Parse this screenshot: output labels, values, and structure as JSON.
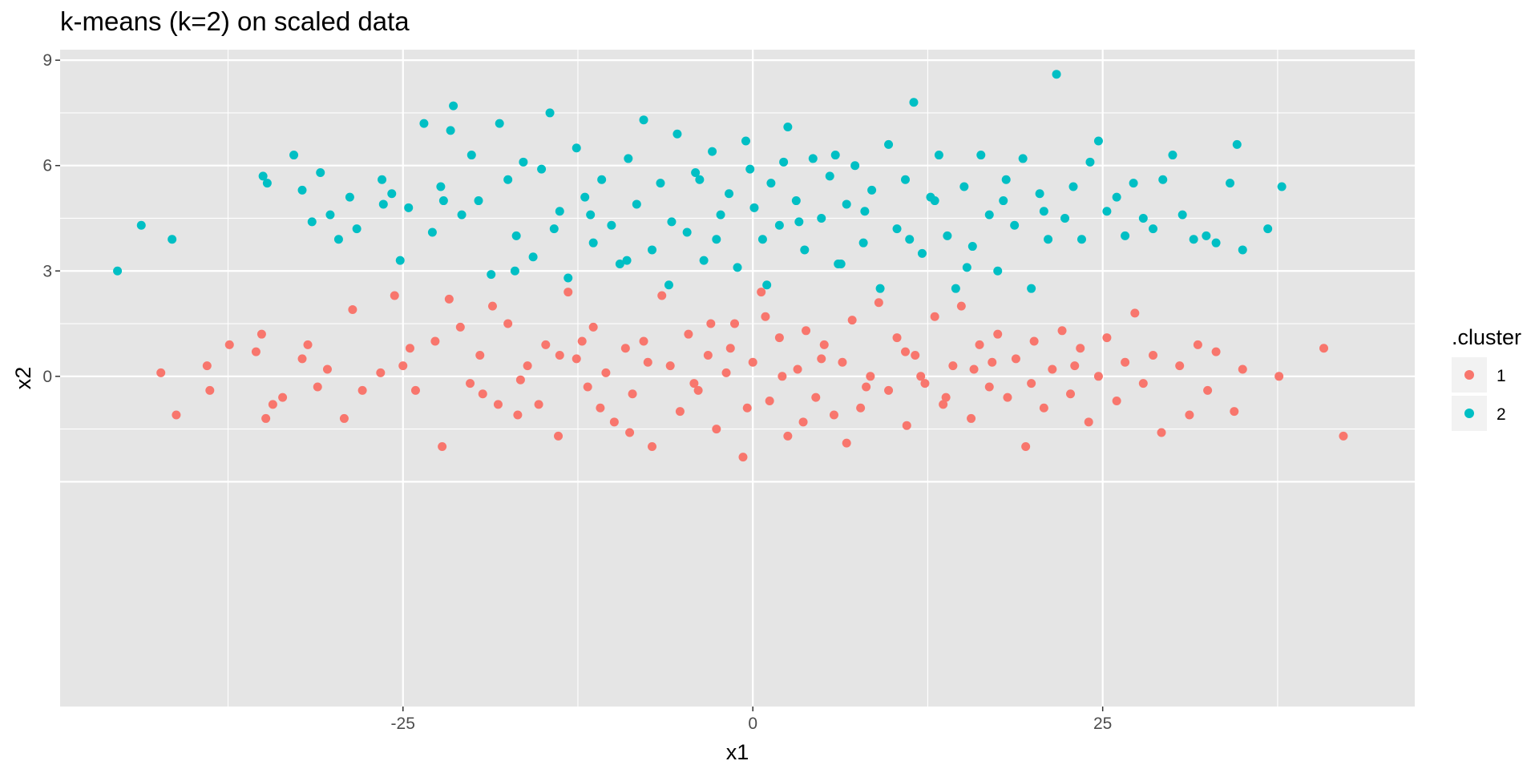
{
  "chart_data": {
    "type": "scatter",
    "title": "k-means (k=2) on scaled data",
    "xlabel": "x1",
    "ylabel": "x2",
    "xlim": [
      -49.5,
      47.3
    ],
    "ylim": [
      -9.4,
      9.3
    ],
    "x_ticks": [
      -25,
      0,
      25
    ],
    "y_ticks": [
      0,
      3,
      6,
      9
    ],
    "grid": true,
    "background": "#e5e5e5",
    "legend": {
      "title": ".cluster",
      "position": "right",
      "entries": [
        {
          "label": "1",
          "color": "#f8766d"
        },
        {
          "label": "2",
          "color": "#00bfc4"
        }
      ]
    },
    "series": [
      {
        "name": "1",
        "color": "#f8766d",
        "points": [
          [
            -42.3,
            0.1
          ],
          [
            -41.2,
            -1.1
          ],
          [
            -39.0,
            0.3
          ],
          [
            -38.8,
            -0.4
          ],
          [
            -37.4,
            0.9
          ],
          [
            -35.5,
            0.7
          ],
          [
            -35.1,
            1.2
          ],
          [
            -34.8,
            -1.2
          ],
          [
            -34.3,
            -0.8
          ],
          [
            -33.6,
            -0.6
          ],
          [
            -32.2,
            0.5
          ],
          [
            -31.8,
            0.9
          ],
          [
            -31.1,
            -0.3
          ],
          [
            -30.4,
            0.2
          ],
          [
            -29.2,
            -1.2
          ],
          [
            -28.6,
            1.9
          ],
          [
            -27.9,
            -0.4
          ],
          [
            -26.6,
            0.1
          ],
          [
            -25.6,
            2.3
          ],
          [
            -25.0,
            0.3
          ],
          [
            -24.5,
            0.8
          ],
          [
            -24.1,
            -0.4
          ],
          [
            -22.7,
            1.0
          ],
          [
            -22.2,
            -2.0
          ],
          [
            -21.7,
            2.2
          ],
          [
            -20.9,
            1.4
          ],
          [
            -20.2,
            -0.2
          ],
          [
            -19.5,
            0.6
          ],
          [
            -18.6,
            2.0
          ],
          [
            -18.2,
            -0.8
          ],
          [
            -17.5,
            1.5
          ],
          [
            -16.8,
            -1.1
          ],
          [
            -16.1,
            0.3
          ],
          [
            -15.3,
            -0.8
          ],
          [
            -14.8,
            0.9
          ],
          [
            -13.9,
            -1.7
          ],
          [
            -13.2,
            2.4
          ],
          [
            -12.6,
            0.5
          ],
          [
            -11.8,
            -0.3
          ],
          [
            -11.4,
            1.4
          ],
          [
            -10.5,
            0.1
          ],
          [
            -9.9,
            -1.3
          ],
          [
            -9.1,
            0.8
          ],
          [
            -8.6,
            -0.5
          ],
          [
            -7.8,
            1.0
          ],
          [
            -7.2,
            -2.0
          ],
          [
            -6.5,
            2.3
          ],
          [
            -5.9,
            0.3
          ],
          [
            -5.2,
            -1.0
          ],
          [
            -4.6,
            1.2
          ],
          [
            -3.9,
            -0.4
          ],
          [
            -3.2,
            0.6
          ],
          [
            -2.6,
            -1.5
          ],
          [
            -1.9,
            0.1
          ],
          [
            -1.3,
            1.5
          ],
          [
            -0.7,
            -2.3
          ],
          [
            0.0,
            0.4
          ],
          [
            0.6,
            2.4
          ],
          [
            1.2,
            -0.7
          ],
          [
            1.9,
            1.1
          ],
          [
            2.5,
            -1.7
          ],
          [
            3.2,
            0.2
          ],
          [
            3.8,
            1.3
          ],
          [
            4.5,
            -0.6
          ],
          [
            5.1,
            0.9
          ],
          [
            5.8,
            -1.1
          ],
          [
            6.4,
            0.4
          ],
          [
            7.1,
            1.6
          ],
          [
            7.7,
            -0.9
          ],
          [
            8.4,
            0.0
          ],
          [
            9.0,
            2.1
          ],
          [
            9.7,
            -0.4
          ],
          [
            10.3,
            1.1
          ],
          [
            11.0,
            -1.4
          ],
          [
            11.6,
            0.6
          ],
          [
            12.3,
            -0.2
          ],
          [
            13.0,
            1.7
          ],
          [
            13.6,
            -0.8
          ],
          [
            14.3,
            0.3
          ],
          [
            14.9,
            2.0
          ],
          [
            15.6,
            -1.2
          ],
          [
            16.2,
            0.9
          ],
          [
            16.9,
            -0.3
          ],
          [
            17.5,
            1.2
          ],
          [
            18.2,
            -0.6
          ],
          [
            18.8,
            0.5
          ],
          [
            19.5,
            -2.0
          ],
          [
            20.1,
            1.0
          ],
          [
            20.8,
            -0.9
          ],
          [
            21.4,
            0.2
          ],
          [
            22.1,
            1.3
          ],
          [
            22.7,
            -0.5
          ],
          [
            23.4,
            0.8
          ],
          [
            24.0,
            -1.3
          ],
          [
            24.7,
            0.0
          ],
          [
            25.3,
            1.1
          ],
          [
            26.0,
            -0.7
          ],
          [
            26.6,
            0.4
          ],
          [
            27.3,
            1.8
          ],
          [
            27.9,
            -0.2
          ],
          [
            28.6,
            0.6
          ],
          [
            29.2,
            -1.6
          ],
          [
            30.5,
            0.3
          ],
          [
            31.2,
            -1.1
          ],
          [
            31.8,
            0.9
          ],
          [
            32.5,
            -0.4
          ],
          [
            33.1,
            0.7
          ],
          [
            34.4,
            -1.0
          ],
          [
            35.0,
            0.2
          ],
          [
            37.6,
            0.0
          ],
          [
            40.8,
            0.8
          ],
          [
            42.2,
            -1.7
          ],
          [
            -16.6,
            -0.1
          ],
          [
            -13.8,
            0.6
          ],
          [
            -10.9,
            -0.9
          ],
          [
            -7.5,
            0.4
          ],
          [
            -4.2,
            -0.2
          ],
          [
            -1.6,
            0.8
          ],
          [
            2.1,
            0.0
          ],
          [
            4.9,
            0.5
          ],
          [
            8.1,
            -0.3
          ],
          [
            10.9,
            0.7
          ],
          [
            13.8,
            -0.6
          ],
          [
            17.1,
            0.4
          ],
          [
            19.9,
            -0.2
          ],
          [
            23.0,
            0.3
          ],
          [
            -19.3,
            -0.5
          ],
          [
            -0.4,
            -0.9
          ],
          [
            6.7,
            -1.9
          ],
          [
            -8.8,
            -1.6
          ],
          [
            12.0,
            0.0
          ],
          [
            3.6,
            -1.3
          ],
          [
            -3.0,
            1.5
          ],
          [
            0.9,
            1.7
          ],
          [
            -12.2,
            1.0
          ],
          [
            15.8,
            0.2
          ]
        ]
      },
      {
        "name": "2",
        "color": "#00bfc4",
        "points": [
          [
            -45.4,
            3.0
          ],
          [
            -43.7,
            4.3
          ],
          [
            -41.5,
            3.9
          ],
          [
            -35.0,
            5.7
          ],
          [
            -34.7,
            5.5
          ],
          [
            -32.8,
            6.3
          ],
          [
            -32.2,
            5.3
          ],
          [
            -31.5,
            4.4
          ],
          [
            -30.9,
            5.8
          ],
          [
            -30.2,
            4.6
          ],
          [
            -29.6,
            3.9
          ],
          [
            -28.8,
            5.1
          ],
          [
            -28.3,
            4.2
          ],
          [
            -26.4,
            4.9
          ],
          [
            -25.8,
            5.2
          ],
          [
            -25.2,
            3.3
          ],
          [
            -24.6,
            4.8
          ],
          [
            -23.5,
            7.2
          ],
          [
            -22.9,
            4.1
          ],
          [
            -22.3,
            5.4
          ],
          [
            -21.6,
            7.0
          ],
          [
            -21.4,
            7.7
          ],
          [
            -20.8,
            4.6
          ],
          [
            -20.1,
            6.3
          ],
          [
            -19.6,
            5.0
          ],
          [
            -18.7,
            2.9
          ],
          [
            -18.1,
            7.2
          ],
          [
            -17.5,
            5.6
          ],
          [
            -16.9,
            4.0
          ],
          [
            -16.4,
            6.1
          ],
          [
            -15.7,
            3.4
          ],
          [
            -15.1,
            5.9
          ],
          [
            -14.5,
            7.5
          ],
          [
            -13.8,
            4.7
          ],
          [
            -13.2,
            2.8
          ],
          [
            -12.6,
            6.5
          ],
          [
            -12.0,
            5.1
          ],
          [
            -11.4,
            3.8
          ],
          [
            -10.8,
            5.6
          ],
          [
            -10.1,
            4.3
          ],
          [
            -9.5,
            3.2
          ],
          [
            -8.9,
            6.2
          ],
          [
            -8.3,
            4.9
          ],
          [
            -7.8,
            7.3
          ],
          [
            -7.2,
            3.6
          ],
          [
            -6.6,
            5.5
          ],
          [
            -6.0,
            2.6
          ],
          [
            -5.4,
            6.9
          ],
          [
            -4.7,
            4.1
          ],
          [
            -4.1,
            5.8
          ],
          [
            -3.5,
            3.3
          ],
          [
            -2.9,
            6.4
          ],
          [
            -2.3,
            4.6
          ],
          [
            -1.7,
            5.2
          ],
          [
            -1.1,
            3.1
          ],
          [
            -0.5,
            6.7
          ],
          [
            0.1,
            4.8
          ],
          [
            0.7,
            3.9
          ],
          [
            1.3,
            5.5
          ],
          [
            1.9,
            4.3
          ],
          [
            2.5,
            7.1
          ],
          [
            3.1,
            5.0
          ],
          [
            3.7,
            3.6
          ],
          [
            4.3,
            6.2
          ],
          [
            4.9,
            4.5
          ],
          [
            5.5,
            5.7
          ],
          [
            6.1,
            3.2
          ],
          [
            6.7,
            4.9
          ],
          [
            7.3,
            6.0
          ],
          [
            7.9,
            3.8
          ],
          [
            8.5,
            5.3
          ],
          [
            9.1,
            2.5
          ],
          [
            9.7,
            6.6
          ],
          [
            10.3,
            4.2
          ],
          [
            10.9,
            5.6
          ],
          [
            11.5,
            7.8
          ],
          [
            12.1,
            3.5
          ],
          [
            12.7,
            5.1
          ],
          [
            13.3,
            6.3
          ],
          [
            13.9,
            4.0
          ],
          [
            14.5,
            2.5
          ],
          [
            15.1,
            5.4
          ],
          [
            15.7,
            3.7
          ],
          [
            16.3,
            6.3
          ],
          [
            16.9,
            4.6
          ],
          [
            17.5,
            3.0
          ],
          [
            18.1,
            5.6
          ],
          [
            18.7,
            4.3
          ],
          [
            19.3,
            6.2
          ],
          [
            19.9,
            2.5
          ],
          [
            20.5,
            5.2
          ],
          [
            21.1,
            3.9
          ],
          [
            21.7,
            8.6
          ],
          [
            22.3,
            4.5
          ],
          [
            22.9,
            5.4
          ],
          [
            23.5,
            3.9
          ],
          [
            24.1,
            6.1
          ],
          [
            24.7,
            6.7
          ],
          [
            25.3,
            4.7
          ],
          [
            26.0,
            5.1
          ],
          [
            26.6,
            4.0
          ],
          [
            27.2,
            5.5
          ],
          [
            27.9,
            4.5
          ],
          [
            28.6,
            4.2
          ],
          [
            29.3,
            5.6
          ],
          [
            30.0,
            6.3
          ],
          [
            30.7,
            4.6
          ],
          [
            31.5,
            3.9
          ],
          [
            32.4,
            4.0
          ],
          [
            33.1,
            3.8
          ],
          [
            34.1,
            5.5
          ],
          [
            34.6,
            6.6
          ],
          [
            35.0,
            3.6
          ],
          [
            36.8,
            4.2
          ],
          [
            37.8,
            5.4
          ],
          [
            -17.0,
            3.0
          ],
          [
            -2.6,
            3.9
          ],
          [
            1.0,
            2.6
          ],
          [
            6.3,
            3.2
          ],
          [
            15.3,
            3.1
          ],
          [
            -9.0,
            3.3
          ],
          [
            -5.8,
            4.4
          ],
          [
            -0.2,
            5.9
          ],
          [
            3.3,
            4.4
          ],
          [
            8.0,
            4.7
          ],
          [
            11.2,
            3.9
          ],
          [
            17.9,
            5.0
          ],
          [
            -11.6,
            4.6
          ],
          [
            -14.2,
            4.2
          ],
          [
            2.2,
            6.1
          ],
          [
            -3.8,
            5.6
          ],
          [
            5.9,
            6.3
          ],
          [
            13.0,
            5.0
          ],
          [
            20.8,
            4.7
          ],
          [
            -22.1,
            5.0
          ],
          [
            -26.5,
            5.6
          ]
        ]
      }
    ]
  }
}
